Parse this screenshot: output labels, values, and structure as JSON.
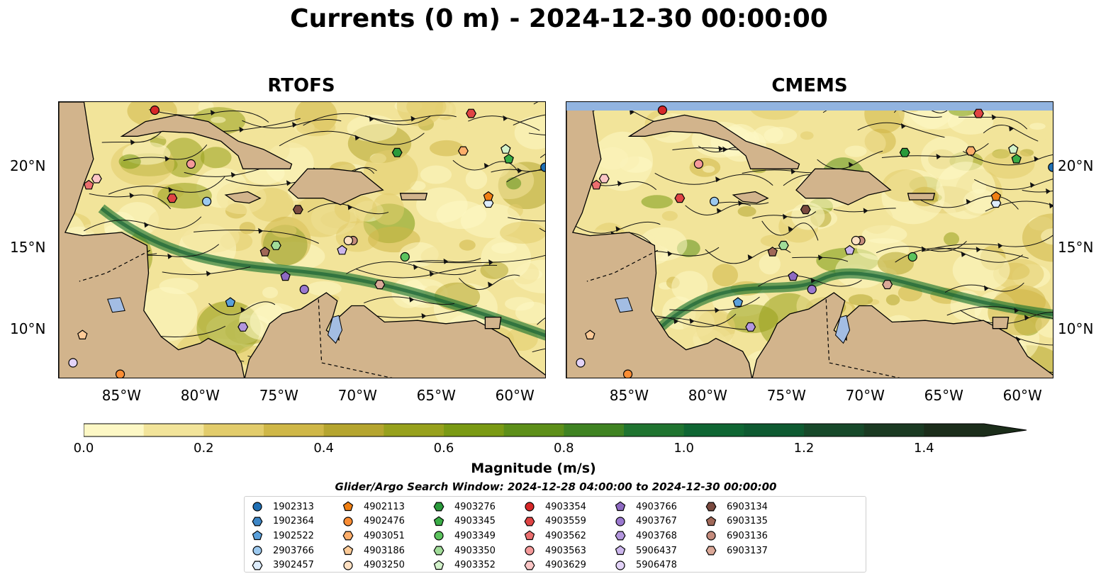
{
  "title": "Currents (0 m) - 2024-12-30 00:00:00",
  "panels": [
    {
      "title": "RTOFS"
    },
    {
      "title": "CMEMS"
    }
  ],
  "axes": {
    "x_ticks": [
      "85°W",
      "80°W",
      "75°W",
      "70°W",
      "65°W",
      "60°W"
    ],
    "y_ticks": [
      "20°N",
      "15°N",
      "10°N"
    ],
    "lon_range": [
      -89,
      -58
    ],
    "lat_range": [
      7,
      24
    ]
  },
  "colorbar": {
    "label": "Magnitude (m/s)",
    "ticks": [
      "0.0",
      "0.2",
      "0.4",
      "0.6",
      "0.8",
      "1.0",
      "1.2",
      "1.4"
    ],
    "range": [
      0,
      1.5
    ],
    "extend": "max",
    "colors": [
      "#fdf8c5",
      "#f2e49a",
      "#e2cc6b",
      "#cfb747",
      "#b5a52f",
      "#97a11d",
      "#7a9a14",
      "#5d8f19",
      "#3f8322",
      "#1f7430",
      "#0f6633",
      "#0e5a31",
      "#17492a",
      "#1a3a22",
      "#1b2d1a"
    ]
  },
  "search_window": "Glider/Argo Search Window: 2024-12-28 04:00:00 to 2024-12-30 00:00:00",
  "land_color": "#d2b48c",
  "water_color": "#a3bde3",
  "legend": [
    {
      "id": "1902313",
      "marker": "circle",
      "color": "#1f6fb4"
    },
    {
      "id": "1902364",
      "marker": "hexagon",
      "color": "#3d86c6"
    },
    {
      "id": "1902522",
      "marker": "pentagon",
      "color": "#5aa0db"
    },
    {
      "id": "2903766",
      "marker": "circle",
      "color": "#9cc9ef"
    },
    {
      "id": "3902457",
      "marker": "hexagon",
      "color": "#ddecfb"
    },
    {
      "id": "4902113",
      "marker": "pentagon",
      "color": "#f07f13"
    },
    {
      "id": "4902476",
      "marker": "circle",
      "color": "#fb8d34"
    },
    {
      "id": "4903051",
      "marker": "hexagon",
      "color": "#fdae6b"
    },
    {
      "id": "4903186",
      "marker": "pentagon",
      "color": "#fdcb98"
    },
    {
      "id": "4903250",
      "marker": "circle",
      "color": "#fde0c2"
    },
    {
      "id": "4903276",
      "marker": "hexagon",
      "color": "#2a9a3b"
    },
    {
      "id": "4903345",
      "marker": "pentagon",
      "color": "#3aad46"
    },
    {
      "id": "4903349",
      "marker": "circle",
      "color": "#5cc35e"
    },
    {
      "id": "4903350",
      "marker": "hexagon",
      "color": "#a1dc99"
    },
    {
      "id": "4903352",
      "marker": "pentagon",
      "color": "#d3f2cb"
    },
    {
      "id": "4903354",
      "marker": "circle",
      "color": "#d62728"
    },
    {
      "id": "4903559",
      "marker": "hexagon",
      "color": "#e04444"
    },
    {
      "id": "4903562",
      "marker": "pentagon",
      "color": "#ec6f6f"
    },
    {
      "id": "4903563",
      "marker": "circle",
      "color": "#f59a9a"
    },
    {
      "id": "4903629",
      "marker": "hexagon",
      "color": "#fbc6c6"
    },
    {
      "id": "4903766",
      "marker": "pentagon",
      "color": "#8e6ac2"
    },
    {
      "id": "4903767",
      "marker": "circle",
      "color": "#9a78cf"
    },
    {
      "id": "4903768",
      "marker": "hexagon",
      "color": "#b396dd"
    },
    {
      "id": "5906437",
      "marker": "pentagon",
      "color": "#ccb6ec"
    },
    {
      "id": "5906478",
      "marker": "circle",
      "color": "#e3d3f8"
    },
    {
      "id": "6903134",
      "marker": "hexagon",
      "color": "#7a4a3f"
    },
    {
      "id": "6903135",
      "marker": "pentagon",
      "color": "#a06858"
    },
    {
      "id": "6903136",
      "marker": "circle",
      "color": "#c48b7c"
    },
    {
      "id": "6903137",
      "marker": "hexagon",
      "color": "#dba898"
    }
  ],
  "floats": [
    {
      "id": "1902313",
      "lon": -58.1,
      "lat": 20.0
    },
    {
      "id": "3902457",
      "lon": -61.7,
      "lat": 17.8
    },
    {
      "id": "4902113",
      "lon": -61.7,
      "lat": 18.2
    },
    {
      "id": "4902476",
      "lon": -85.1,
      "lat": 7.3
    },
    {
      "id": "4903051",
      "lon": -63.3,
      "lat": 21.0
    },
    {
      "id": "4903186",
      "lon": -87.5,
      "lat": 9.7
    },
    {
      "id": "4903276",
      "lon": -67.5,
      "lat": 20.9
    },
    {
      "id": "4903345",
      "lon": -60.4,
      "lat": 20.5
    },
    {
      "id": "4903349",
      "lon": -67.0,
      "lat": 14.5
    },
    {
      "id": "4903350",
      "lon": -75.2,
      "lat": 15.2
    },
    {
      "id": "4903352",
      "lon": -60.6,
      "lat": 21.1
    },
    {
      "id": "4903354",
      "lon": -82.9,
      "lat": 23.5
    },
    {
      "id": "4903559",
      "lon": -62.8,
      "lat": 23.3
    },
    {
      "id": "4903562",
      "lon": -87.1,
      "lat": 18.9
    },
    {
      "id": "4903563",
      "lon": -80.6,
      "lat": 20.2
    },
    {
      "id": "4903629",
      "lon": -86.6,
      "lat": 19.3
    },
    {
      "id": "4903766",
      "lon": -74.6,
      "lat": 13.3
    },
    {
      "id": "4903767",
      "lon": -73.4,
      "lat": 12.5
    },
    {
      "id": "4903768",
      "lon": -77.3,
      "lat": 10.2
    },
    {
      "id": "5906437",
      "lon": -71.0,
      "lat": 14.9
    },
    {
      "id": "5906478",
      "lon": -88.1,
      "lat": 8.0
    },
    {
      "id": "1902522",
      "lon": -78.1,
      "lat": 11.7
    },
    {
      "id": "2903766",
      "lon": -79.6,
      "lat": 17.9
    },
    {
      "id": "4903559b",
      "lon": -81.8,
      "lat": 18.1
    },
    {
      "id": "6903134",
      "lon": -73.8,
      "lat": 17.4
    },
    {
      "id": "6903135",
      "lon": -75.9,
      "lat": 14.8
    },
    {
      "id": "6903136",
      "lon": -70.3,
      "lat": 15.5
    },
    {
      "id": "6903137",
      "lon": -68.6,
      "lat": 12.8
    },
    {
      "id": "4903250",
      "lon": -70.6,
      "lat": 15.5
    }
  ]
}
